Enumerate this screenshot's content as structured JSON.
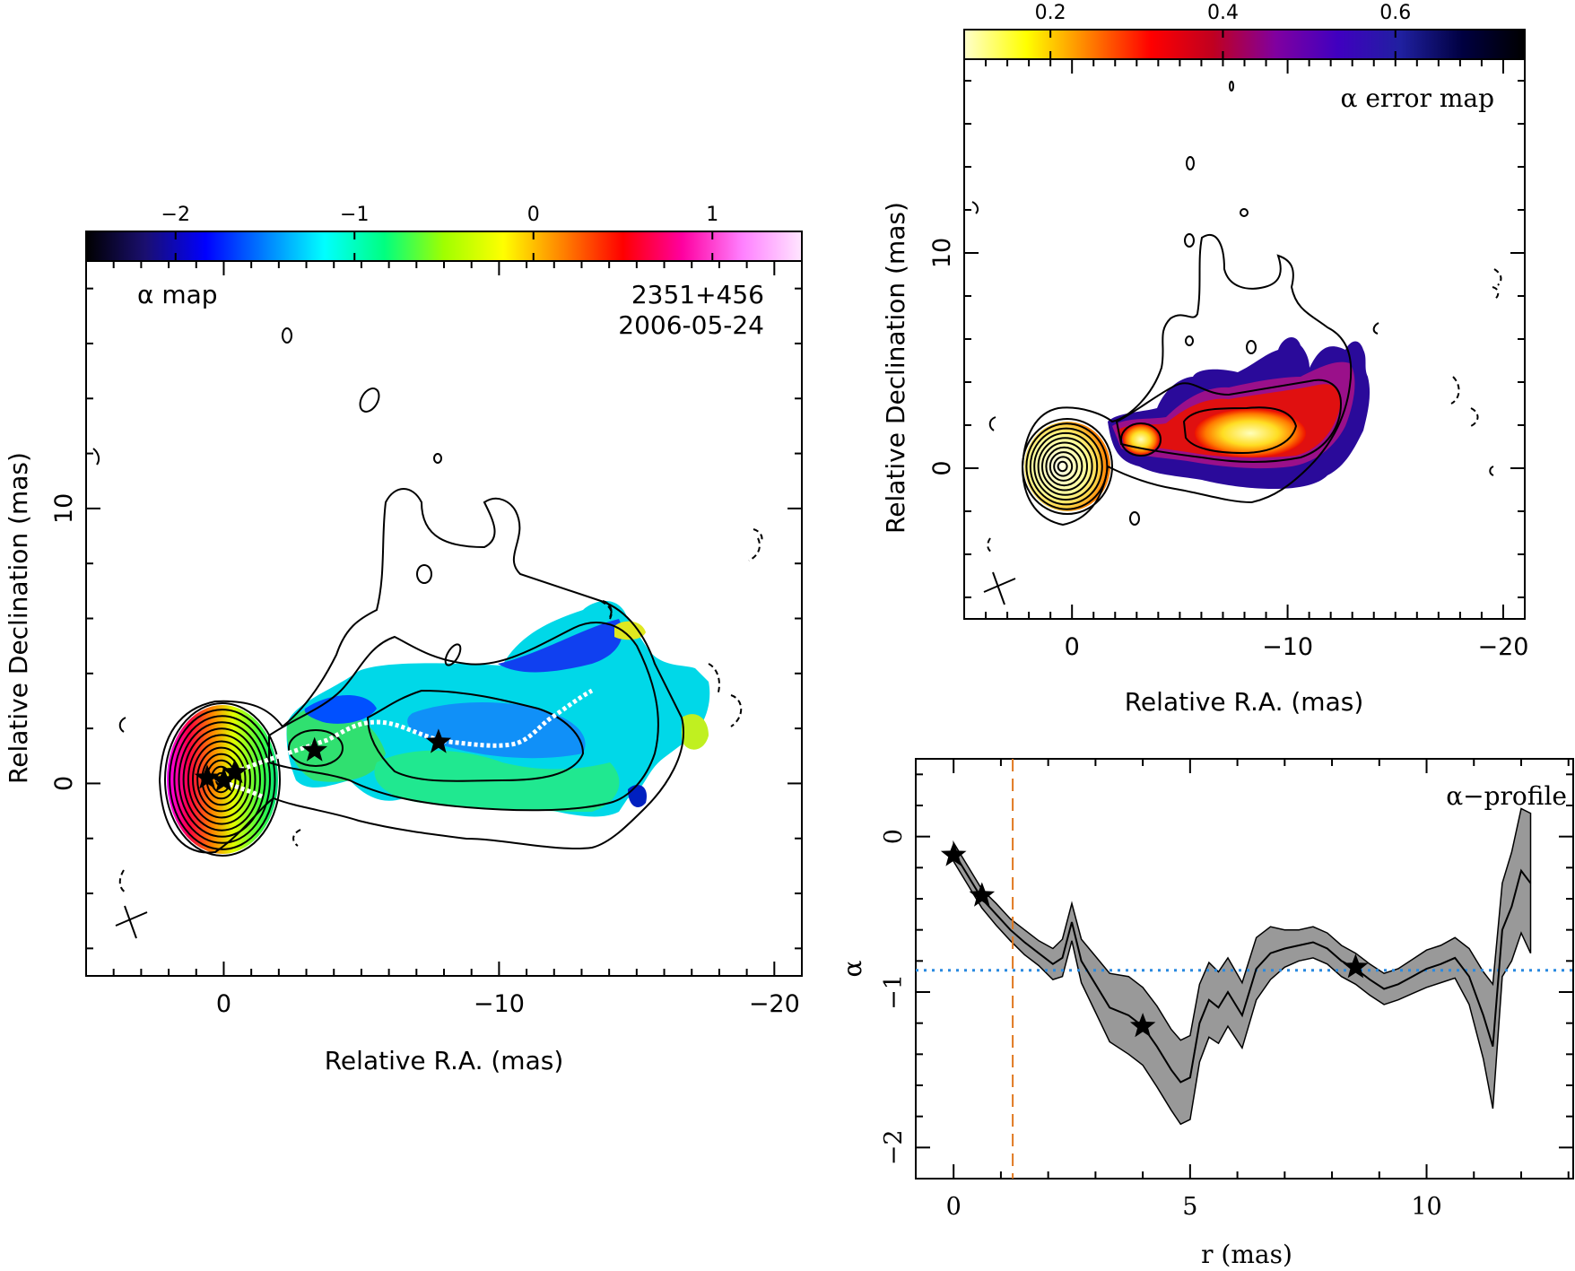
{
  "chart_data": [
    {
      "type": "heatmap",
      "panel": "alpha-map",
      "title": "α map",
      "source": "2351+456",
      "date": "2006-05-24",
      "xlabel": "Relative R.A. (mas)",
      "ylabel": "Relative Declination (mas)",
      "xlim": [
        5,
        -21
      ],
      "ylim": [
        -7,
        19
      ],
      "xticks": [
        0,
        -10,
        -20
      ],
      "yticks": [
        0,
        10
      ],
      "colorbar": {
        "range": [
          -2.5,
          1.5
        ],
        "ticks": [
          -2,
          -1,
          0,
          1
        ],
        "colors": [
          "#000000",
          "#1a0f70",
          "#0000ff",
          "#0080ff",
          "#00ffff",
          "#00ff80",
          "#a0ff00",
          "#ffff00",
          "#ff8000",
          "#ff0000",
          "#ff00a0",
          "#ff80ff",
          "#ffe6ff"
        ]
      },
      "stars": [
        [
          0.6,
          0.2
        ],
        [
          0.0,
          0.1
        ],
        [
          -0.4,
          0.4
        ],
        [
          -3.3,
          1.2
        ],
        [
          -7.8,
          1.5
        ]
      ],
      "ridge_color": "#ffffff"
    },
    {
      "type": "heatmap",
      "panel": "alpha-error-map",
      "title": "α error map",
      "xlabel": "Relative R.A. (mas)",
      "ylabel": "Relative Declination (mas)",
      "xlim": [
        5,
        -21
      ],
      "ylim": [
        -7,
        19
      ],
      "xticks": [
        0,
        -10,
        -20
      ],
      "yticks": [
        0,
        10
      ],
      "colorbar": {
        "range": [
          0.1,
          0.75
        ],
        "ticks": [
          0.2,
          0.4,
          0.6
        ],
        "colors": [
          "#ffffcc",
          "#ffff00",
          "#ff8000",
          "#ff0000",
          "#c00020",
          "#8000a0",
          "#4000c0",
          "#2020a0",
          "#000040",
          "#000000"
        ]
      }
    },
    {
      "type": "line",
      "panel": "alpha-profile",
      "title": "α−profile",
      "xlabel": "r (mas)",
      "ylabel": "α",
      "xlim": [
        -0.8,
        13.1
      ],
      "ylim": [
        -2.2,
        0.5
      ],
      "xticks": [
        0,
        5,
        10
      ],
      "yticks": [
        0,
        -1,
        -2
      ],
      "x": [
        0.0,
        0.3,
        0.6,
        0.9,
        1.2,
        1.5,
        1.8,
        2.1,
        2.3,
        2.5,
        2.7,
        3.0,
        3.3,
        3.7,
        4.0,
        4.3,
        4.6,
        4.8,
        5.0,
        5.2,
        5.4,
        5.6,
        5.8,
        6.1,
        6.4,
        6.7,
        7.0,
        7.3,
        7.6,
        7.9,
        8.2,
        8.5,
        8.8,
        9.1,
        9.4,
        9.7,
        10.0,
        10.3,
        10.6,
        10.9,
        11.2,
        11.4,
        11.6,
        11.8,
        12.0,
        12.2
      ],
      "alpha": [
        -0.1,
        -0.25,
        -0.4,
        -0.5,
        -0.6,
        -0.68,
        -0.75,
        -0.82,
        -0.78,
        -0.55,
        -0.8,
        -0.95,
        -1.1,
        -1.15,
        -1.22,
        -1.35,
        -1.5,
        -1.58,
        -1.55,
        -1.2,
        -1.05,
        -1.1,
        -1.0,
        -1.15,
        -0.85,
        -0.75,
        -0.72,
        -0.7,
        -0.68,
        -0.72,
        -0.8,
        -0.85,
        -0.92,
        -0.98,
        -0.95,
        -0.9,
        -0.85,
        -0.82,
        -0.78,
        -0.9,
        -1.15,
        -1.35,
        -0.6,
        -0.45,
        -0.22,
        -0.3
      ],
      "err": [
        0.06,
        0.06,
        0.06,
        0.07,
        0.07,
        0.08,
        0.08,
        0.1,
        0.12,
        0.12,
        0.14,
        0.18,
        0.22,
        0.25,
        0.25,
        0.26,
        0.26,
        0.27,
        0.27,
        0.25,
        0.24,
        0.23,
        0.22,
        0.21,
        0.2,
        0.17,
        0.12,
        0.1,
        0.1,
        0.1,
        0.1,
        0.1,
        0.1,
        0.1,
        0.1,
        0.11,
        0.12,
        0.12,
        0.13,
        0.18,
        0.28,
        0.4,
        0.3,
        0.35,
        0.4,
        0.45
      ],
      "stars": [
        [
          0.0,
          -0.12
        ],
        [
          0.6,
          -0.38
        ],
        [
          4.0,
          -1.22
        ],
        [
          8.5,
          -0.84
        ]
      ],
      "vline_x": 1.25,
      "vline_color": "#e07820",
      "hline_y": -0.86,
      "hline_color": "#2a8ae0",
      "band_color": "#999999"
    }
  ]
}
